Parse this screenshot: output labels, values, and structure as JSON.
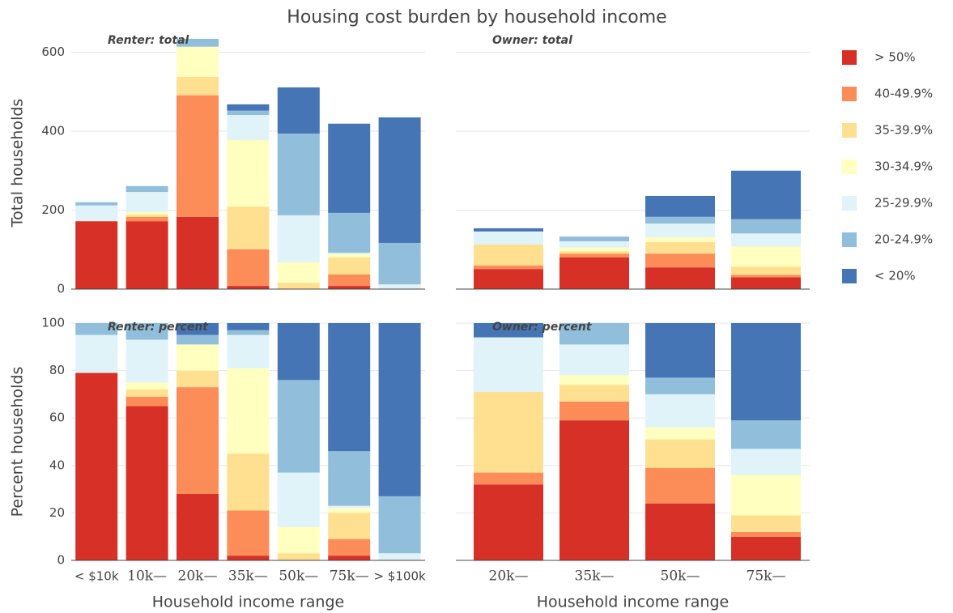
{
  "chart_data": {
    "type": "bar",
    "stacked": true,
    "grid": true,
    "legend_position": "right",
    "title": "Housing cost burden by household income",
    "series": [
      {
        "name": "> 50%",
        "color": "#d73027"
      },
      {
        "name": "40-49.9%",
        "color": "#fc8d59"
      },
      {
        "name": "35-39.9%",
        "color": "#fee090"
      },
      {
        "name": "30-34.9%",
        "color": "#ffffbf"
      },
      {
        "name": "25-29.9%",
        "color": "#e0f3f8"
      },
      {
        "name": "20-24.9%",
        "color": "#91bfdb"
      },
      {
        "name": "< 20%",
        "color": "#4575b4"
      }
    ],
    "subplots": [
      {
        "title": "Renter: total",
        "ylabel": "Total households",
        "ylim": [
          0,
          640
        ],
        "yticks": [
          0,
          200,
          400,
          600
        ],
        "values": [
          [
            172,
            172,
            183,
            8,
            0,
            8,
            0
          ],
          [
            0,
            11,
            308,
            93,
            0,
            29,
            0
          ],
          [
            0,
            6,
            47,
            108,
            16,
            43,
            0
          ],
          [
            0,
            6,
            76,
            169,
            52,
            8,
            0
          ],
          [
            40,
            51,
            0,
            63,
            119,
            4,
            12
          ],
          [
            8,
            15,
            20,
            11,
            207,
            101,
            105
          ],
          [
            0,
            0,
            0,
            16,
            117,
            226,
            318
          ]
        ]
      },
      {
        "title": "Owner: total",
        "ylim": [
          0,
          640
        ],
        "yticks": [
          0,
          200,
          400,
          600
        ],
        "values": [
          [
            51,
            80,
            55,
            30
          ],
          [
            9,
            10,
            35,
            6
          ],
          [
            53,
            6,
            29,
            21
          ],
          [
            0,
            9,
            12,
            51
          ],
          [
            33,
            16,
            35,
            33
          ],
          [
            0,
            12,
            17,
            36
          ],
          [
            8,
            0,
            53,
            123
          ]
        ]
      },
      {
        "title": "Renter: percent",
        "ylabel": "Percent households",
        "xlabel": "Household income range",
        "ylim": [
          0,
          100
        ],
        "yticks": [
          0,
          20,
          40,
          60,
          80,
          100
        ],
        "categories": [
          "< $10k",
          "10k—",
          "20k—",
          "35k—",
          "50k—",
          "75k—",
          "> $100k"
        ],
        "values": [
          [
            79,
            65,
            28,
            2,
            0,
            2,
            0
          ],
          [
            0,
            4,
            45,
            19,
            0,
            7,
            0
          ],
          [
            0,
            3,
            7,
            24,
            3,
            11,
            0
          ],
          [
            0,
            3,
            11,
            36,
            11,
            2,
            0
          ],
          [
            16,
            18,
            0,
            14,
            23,
            1,
            3
          ],
          [
            5,
            7,
            4,
            2,
            39,
            23,
            24
          ],
          [
            0,
            0,
            5,
            3,
            24,
            54,
            73
          ]
        ]
      },
      {
        "title": "Owner: percent",
        "xlabel": "Household income range",
        "ylim": [
          0,
          100
        ],
        "yticks": [
          0,
          20,
          40,
          60,
          80,
          100
        ],
        "categories": [
          "20k—",
          "35k—",
          "50k—",
          "75k—"
        ],
        "values": [
          [
            32,
            59,
            24,
            10
          ],
          [
            5,
            8,
            15,
            2
          ],
          [
            34,
            7,
            12,
            7
          ],
          [
            0,
            4,
            5,
            17
          ],
          [
            23,
            13,
            14,
            11
          ],
          [
            0,
            9,
            7,
            12
          ],
          [
            6,
            0,
            23,
            41
          ]
        ]
      }
    ]
  }
}
